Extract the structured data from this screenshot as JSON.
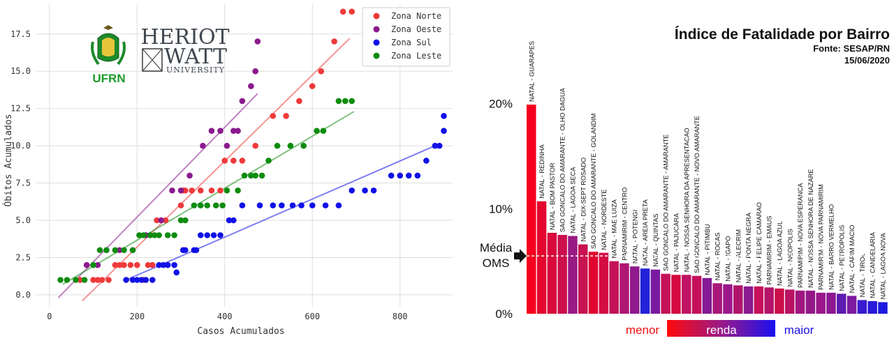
{
  "logos": {
    "ufrn_text": "UFRN",
    "heriot_line1": "HERIOT",
    "heriot_line2": "WATT",
    "heriot_line3": "UNIVERSITY"
  },
  "chart_data": [
    {
      "type": "scatter",
      "title": "",
      "xlabel": "Casos Acumulados",
      "ylabel": "Óbitos Acumulados",
      "xlim": [
        -30,
        920
      ],
      "ylim": [
        -0.8,
        19.5
      ],
      "xticks": [
        0,
        200,
        400,
        600,
        800
      ],
      "yticks": [
        0.0,
        2.5,
        5.0,
        7.5,
        10.0,
        12.5,
        15.0,
        17.5
      ],
      "ytick_labels": [
        "0.0",
        "2.5",
        "5.0",
        "7.5",
        "10.0",
        "12.5",
        "15.0",
        "17.5"
      ],
      "grid": true,
      "legend_position": "top-right",
      "series": [
        {
          "name": "Zona Norte",
          "color": "#ef3a3a",
          "points": [
            [
              70,
              1
            ],
            [
              100,
              1
            ],
            [
              110,
              1
            ],
            [
              120,
              1
            ],
            [
              135,
              1
            ],
            [
              150,
              2
            ],
            [
              160,
              2
            ],
            [
              170,
              2
            ],
            [
              185,
              2
            ],
            [
              200,
              2
            ],
            [
              215,
              1
            ],
            [
              225,
              2
            ],
            [
              235,
              2
            ],
            [
              245,
              5
            ],
            [
              265,
              5
            ],
            [
              300,
              6
            ],
            [
              305,
              7
            ],
            [
              310,
              7
            ],
            [
              325,
              7
            ],
            [
              345,
              7
            ],
            [
              370,
              7
            ],
            [
              390,
              7
            ],
            [
              400,
              9
            ],
            [
              420,
              9
            ],
            [
              440,
              9
            ],
            [
              470,
              10
            ],
            [
              510,
              12
            ],
            [
              540,
              12
            ],
            [
              570,
              13
            ],
            [
              600,
              14
            ],
            [
              620,
              15
            ],
            [
              650,
              17
            ],
            [
              670,
              19
            ],
            [
              690,
              19
            ]
          ],
          "trend": [
            [
              75,
              -0.4
            ],
            [
              685,
              17.2
            ]
          ]
        },
        {
          "name": "Zona Oeste",
          "color": "#8b1a8e",
          "points": [
            [
              85,
              2
            ],
            [
              110,
              2
            ],
            [
              130,
              3
            ],
            [
              160,
              3
            ],
            [
              190,
              3
            ],
            [
              220,
              4
            ],
            [
              255,
              5
            ],
            [
              280,
              7
            ],
            [
              300,
              7
            ],
            [
              320,
              8
            ],
            [
              350,
              10
            ],
            [
              370,
              11
            ],
            [
              390,
              11
            ],
            [
              405,
              10
            ],
            [
              420,
              11
            ],
            [
              430,
              11
            ],
            [
              440,
              13
            ],
            [
              460,
              14
            ],
            [
              470,
              15
            ],
            [
              475,
              17
            ]
          ],
          "trend": [
            [
              20,
              -0.2
            ],
            [
              475,
              13.5
            ]
          ]
        },
        {
          "name": "Zona Sul",
          "color": "#1010e8",
          "points": [
            [
              175,
              1
            ],
            [
              190,
              1
            ],
            [
              200,
              1
            ],
            [
              210,
              1
            ],
            [
              220,
              1
            ],
            [
              235,
              1
            ],
            [
              250,
              2
            ],
            [
              260,
              2
            ],
            [
              270,
              2
            ],
            [
              285,
              2
            ],
            [
              290,
              1.5
            ],
            [
              305,
              3
            ],
            [
              310,
              3
            ],
            [
              330,
              3
            ],
            [
              335,
              3
            ],
            [
              345,
              4
            ],
            [
              360,
              4
            ],
            [
              375,
              4
            ],
            [
              390,
              4
            ],
            [
              410,
              5
            ],
            [
              420,
              5
            ],
            [
              440,
              6
            ],
            [
              480,
              6
            ],
            [
              510,
              6
            ],
            [
              530,
              6
            ],
            [
              555,
              6
            ],
            [
              575,
              6
            ],
            [
              600,
              6
            ],
            [
              630,
              6
            ],
            [
              660,
              6
            ],
            [
              690,
              7
            ],
            [
              720,
              7
            ],
            [
              740,
              7
            ],
            [
              780,
              8
            ],
            [
              800,
              8
            ],
            [
              820,
              8
            ],
            [
              840,
              8
            ],
            [
              860,
              9
            ],
            [
              880,
              10
            ],
            [
              890,
              10
            ],
            [
              900,
              11
            ],
            [
              900,
              12
            ]
          ],
          "trend": [
            [
              175,
              1
            ],
            [
              880,
              10
            ]
          ]
        },
        {
          "name": "Zona Leste",
          "color": "#0e8c0e",
          "points": [
            [
              25,
              1
            ],
            [
              40,
              1
            ],
            [
              60,
              1
            ],
            [
              80,
              1
            ],
            [
              100,
              2
            ],
            [
              115,
              3
            ],
            [
              130,
              3
            ],
            [
              150,
              3
            ],
            [
              170,
              3
            ],
            [
              190,
              3
            ],
            [
              205,
              4
            ],
            [
              215,
              4
            ],
            [
              230,
              4
            ],
            [
              240,
              4
            ],
            [
              250,
              4
            ],
            [
              270,
              4
            ],
            [
              285,
              4
            ],
            [
              300,
              5
            ],
            [
              310,
              5
            ],
            [
              330,
              6
            ],
            [
              345,
              6
            ],
            [
              360,
              6
            ],
            [
              380,
              6
            ],
            [
              395,
              6
            ],
            [
              405,
              7
            ],
            [
              430,
              7
            ],
            [
              445,
              8
            ],
            [
              460,
              8
            ],
            [
              470,
              8
            ],
            [
              485,
              8
            ],
            [
              500,
              9
            ],
            [
              520,
              10
            ],
            [
              550,
              10
            ],
            [
              580,
              10
            ],
            [
              610,
              11
            ],
            [
              625,
              11
            ],
            [
              660,
              13
            ],
            [
              675,
              13
            ],
            [
              690,
              13
            ]
          ],
          "trend": [
            [
              30,
              0.7
            ],
            [
              695,
              12.3
            ]
          ]
        }
      ]
    },
    {
      "type": "bar",
      "title": "Índice de Fatalidade por Bairro",
      "subtitle": "Fonte: SESAP/RN",
      "date": "15/06/2020",
      "ylim": [
        0,
        21
      ],
      "yticks": [
        0,
        10,
        20
      ],
      "ytick_labels": [
        "0%",
        "10%",
        "20%"
      ],
      "reference_line": {
        "value": 5.5,
        "label_line1": "Média",
        "label_line2": "OMS"
      },
      "color_legend": {
        "low": "menor",
        "mid": "renda",
        "high": "maior"
      },
      "categories": [
        "NATAL - GUARAPES",
        "NATAL - REDINHA",
        "NATAL - BOM PASTOR",
        "SAO GONCALO DO AMARANTE - OLHO DAGUA",
        "NATAL - LAGOA SECA",
        "NATAL - DIX-SEPT ROSADO",
        "SAO GONCALO DO AMARANTE - GOLANDIM",
        "NATAL - NORDESTE",
        "NATAL - MAE LUIZA",
        "PARNAMIRIM - CENTRO",
        "NATAL - POTENGI",
        "NATAL - AREIA PRETA",
        "NATAL - QUINTAS",
        "SAO GONCALO DO AMARANTE - AMARANTE",
        "NATAL - PAJUCARA",
        "NATAL - NOSSA SENHORA DA APRESENTACAO",
        "SAO GONCALO DO AMARANTE - NOVO AMARANTE",
        "NATAL - PITIMBU",
        "NATAL - ROCAS",
        "NATAL - IGAPO",
        "NATAL - ALECRIM",
        "NATAL - PONTA NEGRA",
        "NATAL - FELIPE CAMARAO",
        "PARNAMIRIM - EMAUS",
        "NATAL - LAGOA AZUL",
        "NATAL - NEOPOLIS",
        "PARNAMIRIM - NOVA ESPERANCA",
        "NATAL - NOSSA SENHORA DE NAZARE",
        "PARNAMIRIM - NOVA PARNAMIRIM",
        "NATAL - BARRO VERMELHO",
        "NATAL - PETROPOLIS",
        "NATAL - CAPIM MACIO",
        "NATAL - TIROL",
        "NATAL - CANDELARIA",
        "NATAL - LAGOA NOVA"
      ],
      "values": [
        19.9,
        10.7,
        7.7,
        7.5,
        7.4,
        6.6,
        5.9,
        5.8,
        5.0,
        4.8,
        4.5,
        4.3,
        4.2,
        3.8,
        3.7,
        3.7,
        3.6,
        3.4,
        2.9,
        2.8,
        2.7,
        2.6,
        2.6,
        2.5,
        2.4,
        2.3,
        2.2,
        2.2,
        2.0,
        2.0,
        1.9,
        1.7,
        1.3,
        1.2,
        1.1
      ],
      "colors": [
        "#f5001e",
        "#e3062f",
        "#d80a3c",
        "#cc0f4c",
        "#9a1a84",
        "#c81252",
        "#e10530",
        "#d40c44",
        "#c41258",
        "#ae1772",
        "#8e1a8e",
        "#2222d8",
        "#7a1aa0",
        "#c61058",
        "#d40a40",
        "#c01262",
        "#c4105a",
        "#841a94",
        "#a81678",
        "#9c188a",
        "#b0146c",
        "#8a1a90",
        "#c6105a",
        "#b4146a",
        "#cc0e4a",
        "#b81264",
        "#a0167e",
        "#941888",
        "#9a168a",
        "#8c1892",
        "#5c1ab0",
        "#7c1aa0",
        "#3a1ad0",
        "#2a18d8",
        "#1c1ae0"
      ]
    }
  ]
}
